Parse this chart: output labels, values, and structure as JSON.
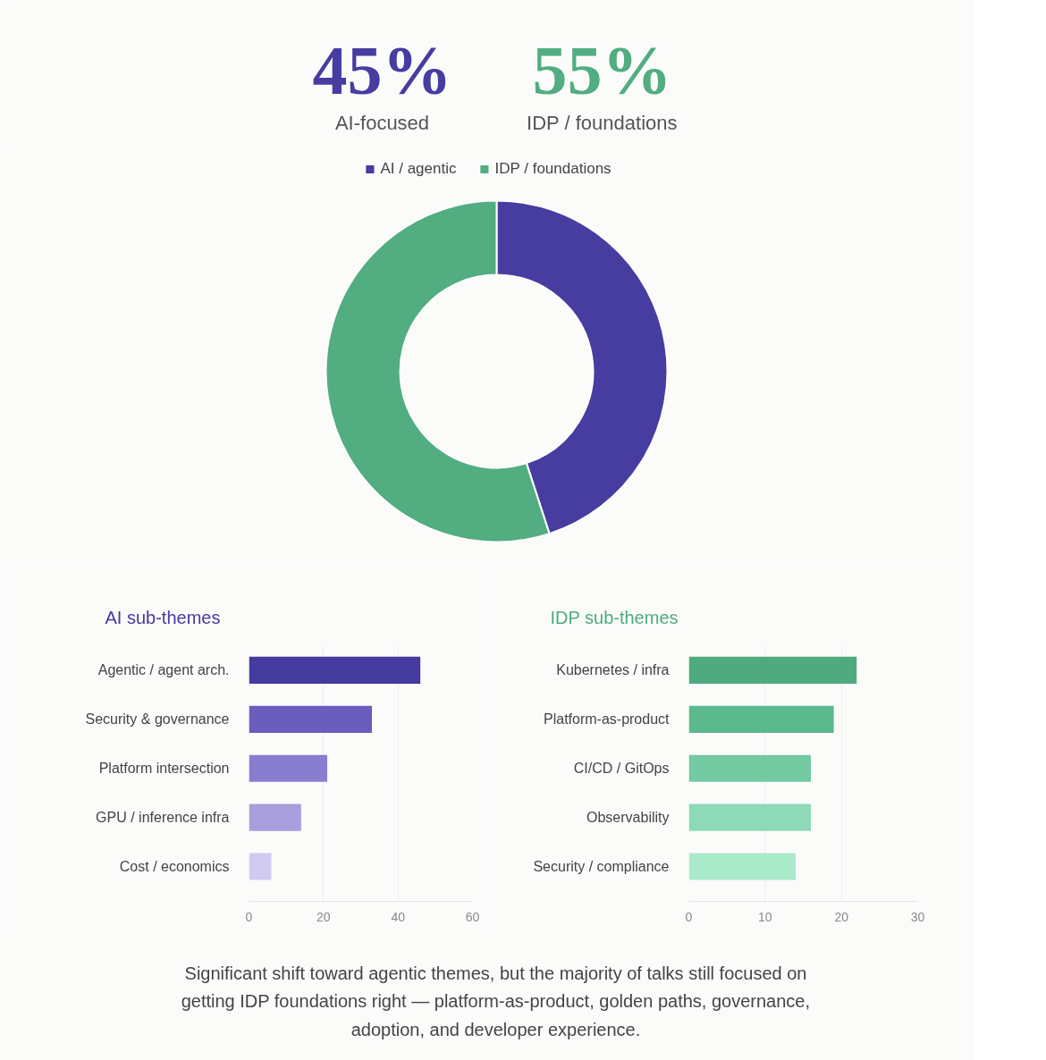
{
  "chart_data": [
    {
      "type": "donut",
      "categories": [
        "AI / agentic",
        "IDP / foundations"
      ],
      "values": [
        45,
        55
      ],
      "colors": [
        "#473ca0",
        "#52ad81"
      ],
      "legend": "top",
      "annotations": [
        "45%",
        "AI-focused",
        "55%",
        "IDP / foundations",
        "Significant shift toward agentic themes, but the majority of talks still focused on getting IDP foundations right — platform-as-product, golden paths, governance, adoption, and developer experience."
      ]
    },
    {
      "type": "bar",
      "orientation": "horizontal",
      "title": "AI sub-themes",
      "categories": [
        "Agentic / agent arch.",
        "Security & governance",
        "Platform intersection",
        "GPU / inference infra",
        "Cost / economics"
      ],
      "values": [
        46,
        33,
        21,
        14,
        6
      ],
      "colors": [
        "#453a9e",
        "#6a5dbd",
        "#887dce",
        "#a89fdc",
        "#d0caf0"
      ],
      "xlim": [
        0,
        60
      ],
      "xticks": [
        0,
        20,
        40,
        60
      ],
      "grid": "x"
    },
    {
      "type": "bar",
      "orientation": "horizontal",
      "title": "IDP sub-themes",
      "categories": [
        "Kubernetes / infra",
        "Platform-as-product",
        "CI/CD / GitOps",
        "Observability",
        "Security / compliance"
      ],
      "values": [
        22,
        19,
        16,
        16,
        14
      ],
      "colors": [
        "#4fab7f",
        "#5cb98d",
        "#73c9a1",
        "#8ed9b7",
        "#a9eacb"
      ],
      "xlim": [
        0,
        30
      ],
      "xticks": [
        0,
        10,
        20,
        30
      ],
      "grid": "x"
    }
  ]
}
